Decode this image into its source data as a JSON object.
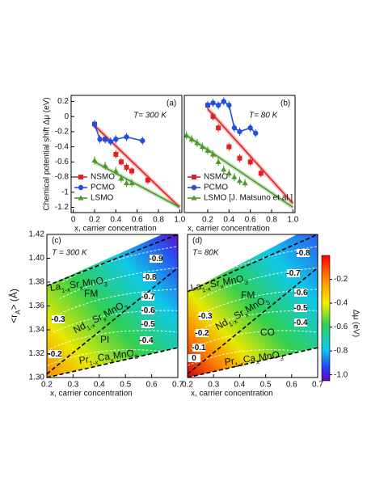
{
  "chart_data": [
    {
      "type": "line",
      "panel": "(a)",
      "annotation": "T= 300 K",
      "ylabel": "Chemical potential shift Δμ (eV)",
      "xlabel": "x, carrier concentration",
      "xlim": [
        -0.02,
        1.02
      ],
      "ylim": [
        -1.27,
        0.28
      ],
      "xticks": [
        0,
        0.2,
        0.4,
        0.6,
        0.8,
        {
          "value": 1,
          "label": "1.0"
        }
      ],
      "yticks": [
        0.2,
        0,
        -0.2,
        -0.4,
        -0.6,
        -0.8,
        -1.0,
        -1.2
      ],
      "series": [
        {
          "name": "NSMO",
          "color": "#e32020",
          "marker": "square",
          "x": [
            0.2,
            0.3,
            0.4,
            0.45,
            0.5,
            0.55,
            0.7
          ],
          "values": [
            -0.1,
            -0.3,
            -0.5,
            -0.6,
            -0.67,
            -0.72,
            -0.84
          ],
          "fit": {
            "x": [
              0.2,
              1.0
            ],
            "values": [
              -0.12,
              -1.2
            ]
          }
        },
        {
          "name": "PCMO",
          "color": "#1f4fe0",
          "marker": "circle",
          "x": [
            0.2,
            0.25,
            0.3,
            0.35,
            0.4,
            0.5,
            0.65
          ],
          "values": [
            -0.1,
            -0.3,
            -0.3,
            -0.33,
            -0.3,
            -0.27,
            -0.32
          ]
        },
        {
          "name": "LSMO",
          "color": "#4a9a2a",
          "marker": "triangle",
          "x": [
            0.2,
            0.3,
            0.4,
            0.45,
            0.5,
            0.55
          ],
          "values": [
            -0.58,
            -0.65,
            -0.72,
            -0.82,
            -0.88,
            -0.88
          ],
          "fit": {
            "x": [
              0.2,
              1.0
            ],
            "values": [
              -0.6,
              -1.2
            ]
          }
        }
      ]
    },
    {
      "type": "line",
      "panel": "(b)",
      "annotation": "T= 80 K",
      "xlabel": "x, carrier concentration",
      "xlim": [
        -0.02,
        1.02
      ],
      "ylim": [
        -1.27,
        0.28
      ],
      "xticks": [
        0.2,
        0.4,
        0.6,
        0.8,
        {
          "value": 1,
          "label": "1.0"
        }
      ],
      "series": [
        {
          "name": "NSMO",
          "color": "#e32020",
          "marker": "square",
          "x": [
            0.2,
            0.25,
            0.3,
            0.4,
            0.5,
            0.6,
            0.7
          ],
          "values": [
            0.15,
            0.0,
            -0.15,
            -0.4,
            -0.55,
            -0.6,
            -0.75
          ],
          "fit": {
            "x": [
              0.2,
              1.0
            ],
            "values": [
              0.1,
              -1.15
            ]
          }
        },
        {
          "name": "PCMO",
          "color": "#1f4fe0",
          "marker": "circle",
          "x": [
            0.2,
            0.25,
            0.3,
            0.35,
            0.4,
            0.45,
            0.5,
            0.6,
            0.65
          ],
          "values": [
            0.15,
            0.18,
            0.15,
            0.2,
            0.15,
            -0.15,
            -0.2,
            -0.15,
            -0.22
          ]
        },
        {
          "name": "LSMO [J. Matsuno et al.]",
          "color": "#4a9a2a",
          "marker": "triangle",
          "x": [
            0,
            0.05,
            0.1,
            0.15,
            0.2,
            0.25,
            0.3,
            0.35,
            0.4,
            0.45,
            0.5,
            0.55
          ],
          "values": [
            -0.25,
            -0.3,
            -0.35,
            -0.4,
            -0.45,
            -0.5,
            -0.6,
            -0.7,
            -0.75,
            -0.8,
            -0.85,
            -0.88
          ],
          "fit": {
            "x": [
              0.0,
              1.0
            ],
            "values": [
              -0.25,
              -1.2
            ]
          }
        }
      ]
    },
    {
      "type": "contour",
      "panel": "(c)",
      "annotation": "T = 300 K",
      "ylabel": [
        "<r",
        "A",
        "> (Å)"
      ],
      "xlabel": "x, carrier concentration",
      "xlim": [
        0.2,
        0.7
      ],
      "ylim": [
        1.3,
        1.42
      ],
      "xticks": [
        0.2,
        0.3,
        0.4,
        0.5,
        0.6,
        0.7
      ],
      "yticks": [
        {
          "value": 1.3,
          "label": "1.30"
        },
        {
          "value": 1.32,
          "label": "1.32"
        },
        {
          "value": 1.34,
          "label": "1.34"
        },
        {
          "value": 1.36,
          "label": "1.36"
        },
        {
          "value": 1.38,
          "label": "1.38"
        },
        {
          "value": 1.4,
          "label": "1.40"
        },
        {
          "value": 1.42,
          "label": "1.42"
        }
      ],
      "regions": [
        [
          "La",
          "1-x",
          "Sr",
          "x",
          "MnO",
          "3"
        ],
        [
          "FM"
        ],
        [
          "Nd",
          "1-x",
          "Sr",
          "x",
          "MnO",
          "3"
        ],
        [
          "PI"
        ],
        [
          "Pr",
          "1-x",
          "Ca",
          "x",
          "MnO",
          "3"
        ]
      ],
      "contour_levels": [
        -0.9,
        -0.8,
        -0.7,
        -0.6,
        -0.5,
        -0.4,
        -0.3,
        -0.2
      ]
    },
    {
      "type": "contour",
      "panel": "(d)",
      "annotation": "T= 80K",
      "xlabel": "x, carrier concentration",
      "xlim": [
        0.2,
        0.7
      ],
      "ylim": [
        1.3,
        1.42
      ],
      "xticks": [
        0.2,
        0.3,
        0.4,
        0.5,
        0.6,
        0.7
      ],
      "regions": [
        [
          "La",
          "1-x",
          "Sr",
          "x",
          "MnO",
          "3"
        ],
        [
          "FM"
        ],
        [
          "Nd",
          "1-x",
          "Sr",
          "x",
          "MnO",
          "3"
        ],
        [
          "CO"
        ],
        [
          "Pr",
          "1-x",
          "Ca",
          "x",
          "MnO",
          "3"
        ]
      ],
      "contour_levels": [
        -0.8,
        -0.7,
        -0.6,
        -0.5,
        -0.4,
        -0.3,
        -0.2,
        -0.1,
        0
      ],
      "colorbar": {
        "label": "Δμ (eV)",
        "lim": [
          -1.05,
          0
        ],
        "ticks": [
          -0.2,
          -0.4,
          -0.6,
          -0.8,
          {
            "value": -1,
            "label": "-1.0"
          }
        ]
      }
    }
  ]
}
